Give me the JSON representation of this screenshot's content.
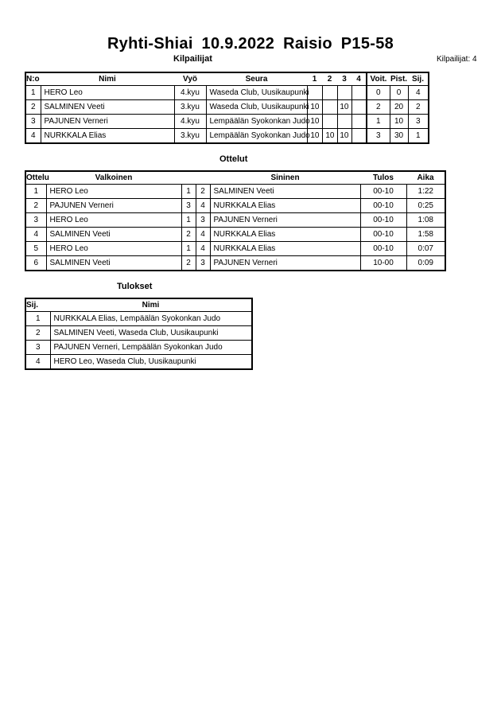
{
  "title": "Ryhti-Shiai  10.9.2022  Raisio   P15-58",
  "competitors": {
    "heading": "Kilpailijat",
    "count_label": "Kilpailijat: 4",
    "columns": [
      "N:o",
      "Nimi",
      "Vyö",
      "Seura",
      "1",
      "2",
      "3",
      "4",
      "Voit.",
      "Pist.",
      "Sij."
    ],
    "rows": [
      {
        "no": "1",
        "name": "HERO Leo",
        "belt": "4.kyu",
        "club": "Waseda Club, Uusikaupunki",
        "s1": "",
        "s2": "",
        "s3": "",
        "s4": "",
        "wins": "0",
        "points": "0",
        "rank": "4"
      },
      {
        "no": "2",
        "name": "SALMINEN Veeti",
        "belt": "3.kyu",
        "club": "Waseda Club, Uusikaupunki",
        "s1": "10",
        "s2": "",
        "s3": "10",
        "s4": "",
        "wins": "2",
        "points": "20",
        "rank": "2"
      },
      {
        "no": "3",
        "name": "PAJUNEN Verneri",
        "belt": "4.kyu",
        "club": "Lempäälän Syokonkan Judo",
        "s1": "10",
        "s2": "",
        "s3": "",
        "s4": "",
        "wins": "1",
        "points": "10",
        "rank": "3"
      },
      {
        "no": "4",
        "name": "NURKKALA Elias",
        "belt": "3.kyu",
        "club": "Lempäälän Syokonkan Judo",
        "s1": "10",
        "s2": "10",
        "s3": "10",
        "s4": "",
        "wins": "3",
        "points": "30",
        "rank": "1"
      }
    ]
  },
  "matches": {
    "heading": "Ottelut",
    "columns": [
      "Ottelu",
      "Valkoinen",
      "Sininen",
      "Tulos",
      "Aika"
    ],
    "rows": [
      {
        "no": "1",
        "white": "HERO Leo",
        "wn": "1",
        "bn": "2",
        "blue": "SALMINEN Veeti",
        "result": "00-10",
        "time": "1:22"
      },
      {
        "no": "2",
        "white": "PAJUNEN Verneri",
        "wn": "3",
        "bn": "4",
        "blue": "NURKKALA Elias",
        "result": "00-10",
        "time": "0:25"
      },
      {
        "no": "3",
        "white": "HERO Leo",
        "wn": "1",
        "bn": "3",
        "blue": "PAJUNEN Verneri",
        "result": "00-10",
        "time": "1:08"
      },
      {
        "no": "4",
        "white": "SALMINEN Veeti",
        "wn": "2",
        "bn": "4",
        "blue": "NURKKALA Elias",
        "result": "00-10",
        "time": "1:58"
      },
      {
        "no": "5",
        "white": "HERO Leo",
        "wn": "1",
        "bn": "4",
        "blue": "NURKKALA Elias",
        "result": "00-10",
        "time": "0:07"
      },
      {
        "no": "6",
        "white": "SALMINEN Veeti",
        "wn": "2",
        "bn": "3",
        "blue": "PAJUNEN Verneri",
        "result": "10-00",
        "time": "0:09"
      }
    ]
  },
  "results": {
    "heading": "Tulokset",
    "columns": [
      "Sij.",
      "Nimi"
    ],
    "rows": [
      {
        "rank": "1",
        "name": "NURKKALA Elias, Lempäälän Syokonkan Judo"
      },
      {
        "rank": "2",
        "name": "SALMINEN Veeti, Waseda Club, Uusikaupunki"
      },
      {
        "rank": "3",
        "name": "PAJUNEN Verneri, Lempäälän Syokonkan Judo"
      },
      {
        "rank": "4",
        "name": "HERO Leo, Waseda Club, Uusikaupunki"
      }
    ]
  }
}
